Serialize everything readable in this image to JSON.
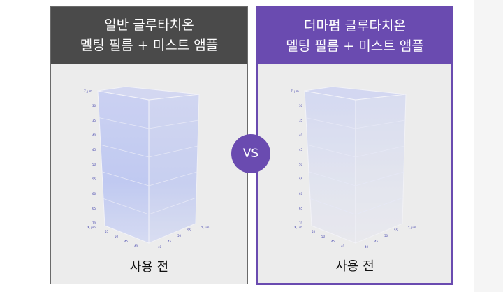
{
  "left": {
    "title_line1": "일반 글루타치온",
    "title_line2": "멜팅 필름 + 미스트 앰플",
    "caption": "사용 전",
    "header_color": "#4a4a4a"
  },
  "right": {
    "title_line1": "더마펌 글루타치온",
    "title_line2": "멜팅 필름 + 미스트 앰플",
    "caption": "사용 전",
    "header_color": "#6a4bb0"
  },
  "vs_label": "VS",
  "axes": {
    "z_label": "Z, µm",
    "z_ticks": [
      "30",
      "35",
      "40",
      "45",
      "50",
      "55",
      "60",
      "65",
      "70"
    ],
    "x_label": "X, µm",
    "x_ticks": [
      "55",
      "50",
      "45",
      "40"
    ],
    "y_label": "Y, µm",
    "y_ticks": [
      "40",
      "45",
      "50",
      "55"
    ]
  }
}
